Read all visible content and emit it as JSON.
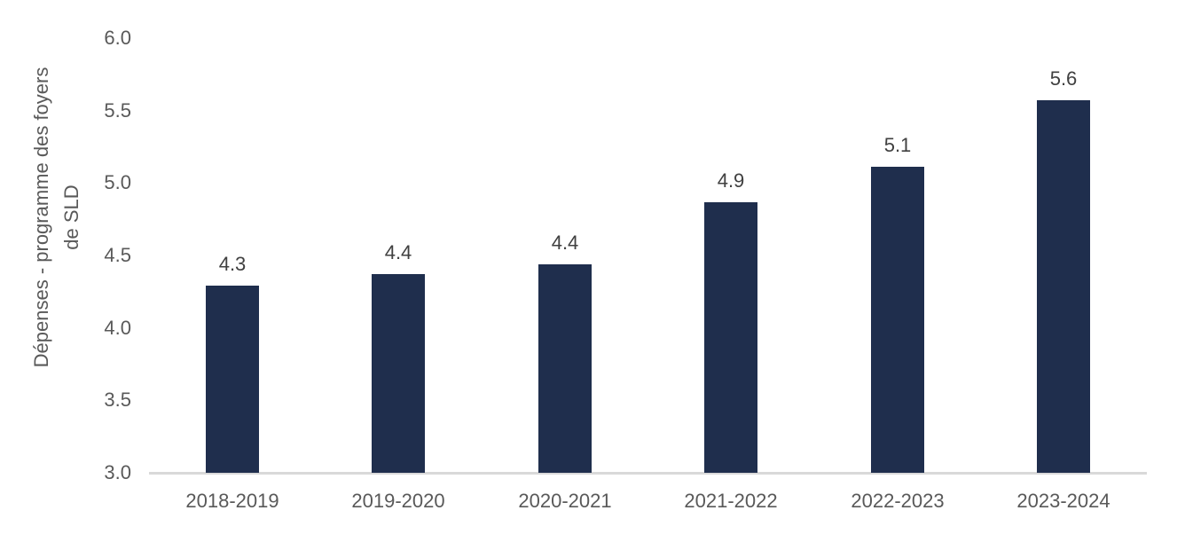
{
  "chart_data": {
    "type": "bar",
    "title": "",
    "categories": [
      "2018-2019",
      "2019-2020",
      "2020-2021",
      "2021-2022",
      "2022-2023",
      "2023-2024"
    ],
    "values": [
      4.3,
      4.4,
      4.4,
      4.9,
      5.1,
      5.6
    ],
    "values_precise_estimate": [
      4.29,
      4.37,
      4.44,
      4.87,
      5.11,
      5.57
    ],
    "data_labels": [
      "4.3",
      "4.4",
      "4.4",
      "4.9",
      "5.1",
      "5.6"
    ],
    "xlabel": "",
    "ylabel": "Dépenses - programme des foyers de SLD",
    "ylabel_lines": [
      "Dépenses - programme des foyers",
      "de SLD"
    ],
    "ylim": [
      3.0,
      6.0
    ],
    "ytick_step": 0.5,
    "yticks": [
      "6.0",
      "5.5",
      "5.0",
      "4.5",
      "4.0",
      "3.5",
      "3.0"
    ],
    "grid": false,
    "legend": false,
    "colors": {
      "bar": "#1f2e4d",
      "axis_line": "#d9d9d9",
      "tick_text": "#595959",
      "category_text": "#595959",
      "data_label_text": "#404040"
    }
  }
}
